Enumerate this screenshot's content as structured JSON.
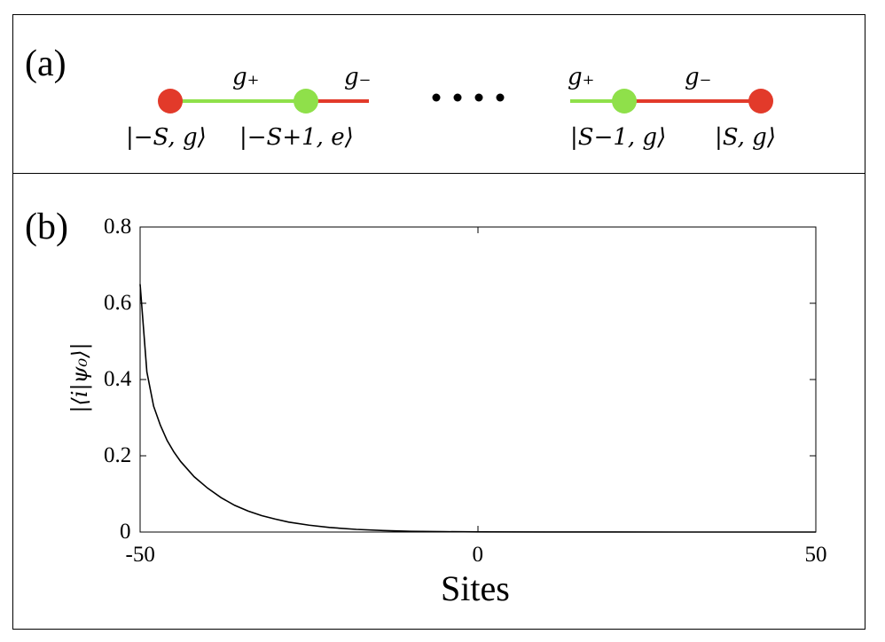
{
  "panel_a": {
    "label": "(a)",
    "colors": {
      "ground": "#e23a2a",
      "excited": "#8fe04a",
      "link_plus": "#8fe04a",
      "link_minus": "#e23a2a",
      "dots": "#000000"
    },
    "coupling_plus": "g₊",
    "coupling_minus": "g₋",
    "state_labels": [
      "|−S, g⟩",
      "|−S+1, e⟩",
      "|S−1, g⟩",
      "|S, g⟩"
    ],
    "ellipsis": "····"
  },
  "panel_b": {
    "label": "(b)"
  },
  "chart_data": {
    "type": "line",
    "xlabel": "Sites",
    "ylabel": "|⟨i|ψ₀⟩|",
    "xlim": [
      -50,
      50
    ],
    "ylim": [
      0,
      0.8
    ],
    "xticks": [
      "-50",
      "0",
      "50"
    ],
    "yticks": [
      "0",
      "0.2",
      "0.4",
      "0.6",
      "0.8"
    ],
    "grid": false,
    "series": [
      {
        "color": "#000000",
        "x": [
          -50,
          -49,
          -48,
          -47,
          -46,
          -45,
          -44,
          -42,
          -40,
          -38,
          -36,
          -34,
          -32,
          -30,
          -28,
          -25,
          -22,
          -18,
          -14,
          -10,
          -5,
          0,
          10,
          20,
          30,
          40,
          50
        ],
        "y": [
          0.65,
          0.42,
          0.33,
          0.28,
          0.24,
          0.21,
          0.185,
          0.145,
          0.115,
          0.09,
          0.07,
          0.055,
          0.043,
          0.034,
          0.026,
          0.018,
          0.012,
          0.007,
          0.004,
          0.002,
          0.001,
          0.0005,
          0.0002,
          0.0001,
          0.0,
          0.0,
          0.0
        ]
      }
    ]
  }
}
